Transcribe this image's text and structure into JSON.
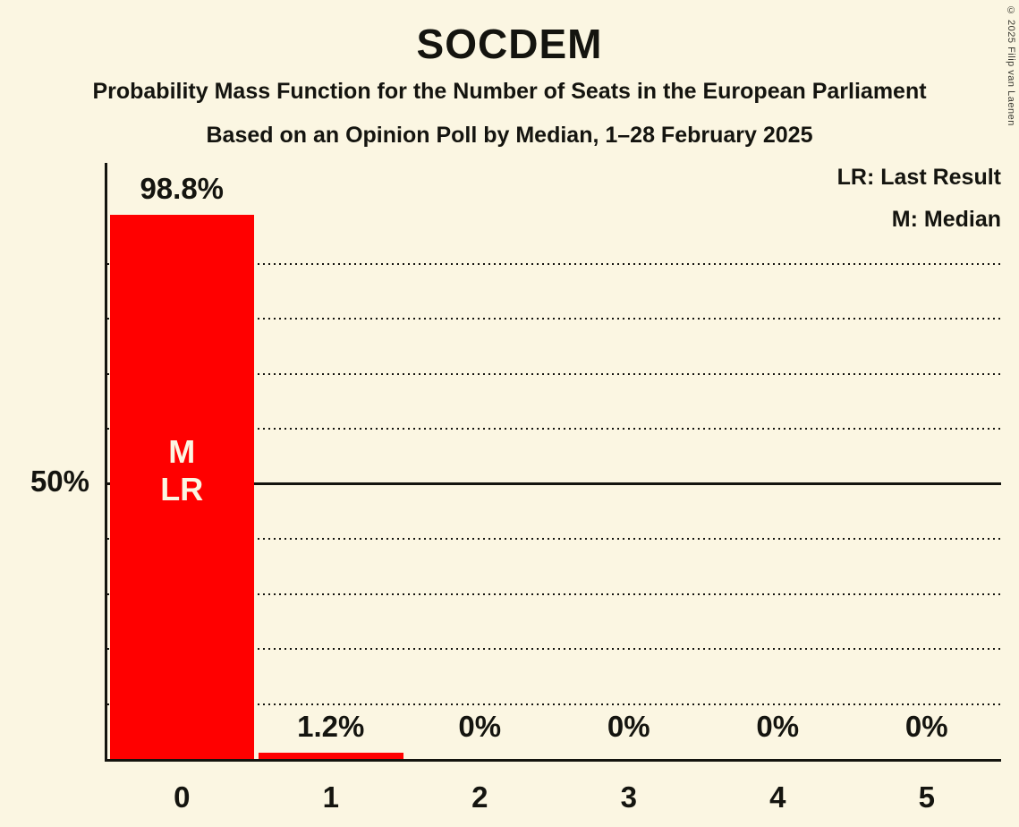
{
  "title": "SOCDEM",
  "subtitles": {
    "line1": "Probability Mass Function for the Number of Seats in the European Parliament",
    "line2": "Based on an Opinion Poll by Median, 1–28 February 2025"
  },
  "legend": {
    "last_result": "LR: Last Result",
    "median": "M: Median"
  },
  "copyright": "© 2025 Filip van Laenen",
  "y_axis": {
    "label": "50%"
  },
  "colors": {
    "background": "#FBF6E2",
    "bar": "#FF0000",
    "text": "#14140F",
    "bar_text": "#FBF6E2"
  },
  "chart_data": {
    "type": "bar",
    "title": "SOCDEM",
    "categories": [
      "0",
      "1",
      "2",
      "3",
      "4",
      "5"
    ],
    "values": [
      98.8,
      1.2,
      0,
      0,
      0,
      0
    ],
    "value_labels": [
      "98.8%",
      "1.2%",
      "0%",
      "0%",
      "0%",
      "0%"
    ],
    "bar_annotations": [
      [
        "M",
        "LR"
      ],
      [],
      [],
      [],
      [],
      []
    ],
    "annotation_meanings": {
      "M": "Median",
      "LR": "Last Result"
    },
    "median_seats": 0,
    "last_result_seats": 0,
    "ylim": [
      0,
      100
    ],
    "y_tick_labels": {
      "50": "50%"
    },
    "dotted_gridlines_pct": [
      10,
      20,
      30,
      40,
      60,
      70,
      80,
      90
    ],
    "solid_gridline_pct": 50,
    "grid": "horizontal-dotted",
    "legend_position": "top-right"
  }
}
